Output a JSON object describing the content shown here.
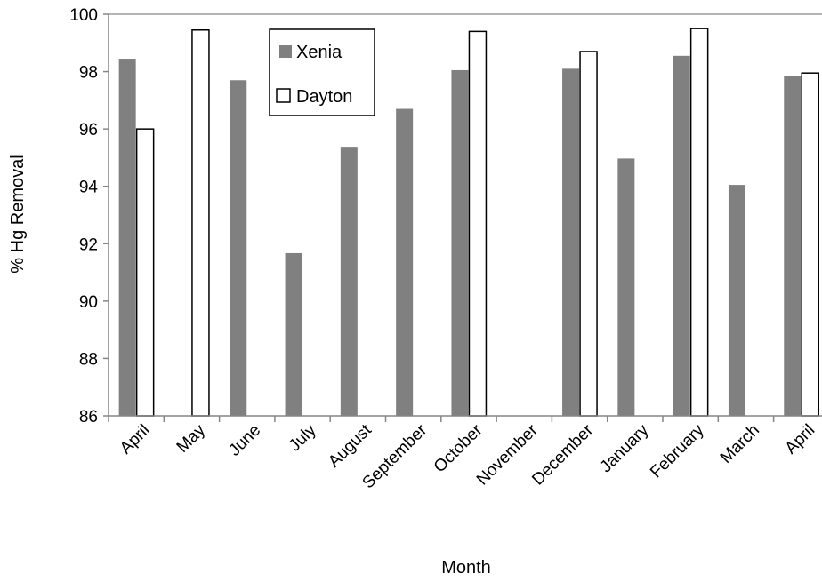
{
  "chart_data": {
    "type": "bar",
    "title": "",
    "xlabel": "Month",
    "ylabel": "% Hg Removal",
    "ylim": [
      86,
      100
    ],
    "yticks": [
      86,
      88,
      90,
      92,
      94,
      96,
      98,
      100
    ],
    "grid": false,
    "legend_position": "top-center",
    "categories": [
      "April",
      "May",
      "June",
      "July",
      "August",
      "September",
      "October",
      "November",
      "December",
      "January",
      "February",
      "March",
      "April"
    ],
    "series": [
      {
        "name": "Xenia",
        "color": "#808080",
        "fill": "solid",
        "values": [
          98.45,
          null,
          97.7,
          91.67,
          95.35,
          96.7,
          98.05,
          null,
          98.1,
          94.97,
          98.55,
          94.05,
          97.85
        ]
      },
      {
        "name": "Dayton",
        "color": "#ffffff",
        "fill": "outline",
        "values": [
          96.0,
          99.45,
          null,
          null,
          null,
          null,
          99.4,
          null,
          98.7,
          null,
          99.5,
          null,
          97.95
        ]
      }
    ]
  }
}
